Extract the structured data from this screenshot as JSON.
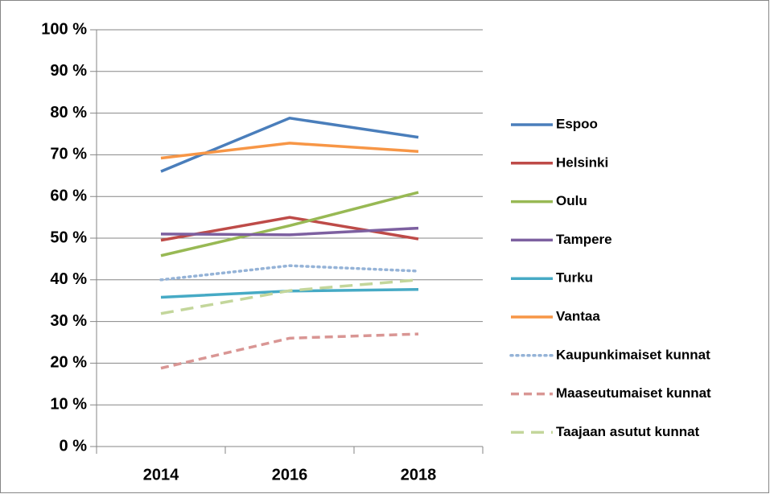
{
  "chart_data": {
    "type": "line",
    "categories": [
      "2014",
      "2016",
      "2018"
    ],
    "ylim": [
      0,
      100
    ],
    "yticks": [
      {
        "value": 0,
        "label": "0 %"
      },
      {
        "value": 10,
        "label": "10 %"
      },
      {
        "value": 20,
        "label": "20 %"
      },
      {
        "value": 30,
        "label": "30 %"
      },
      {
        "value": 40,
        "label": "40 %"
      },
      {
        "value": 50,
        "label": "50 %"
      },
      {
        "value": 60,
        "label": "60 %"
      },
      {
        "value": 70,
        "label": "70 %"
      },
      {
        "value": 80,
        "label": "80 %"
      },
      {
        "value": 90,
        "label": "90 %"
      },
      {
        "value": 100,
        "label": "100 %"
      }
    ],
    "grid": true,
    "legend": "right",
    "series": [
      {
        "name": "Espoo",
        "color": "#4a7ebb",
        "style": "solid",
        "values": [
          66,
          78.8,
          74.2
        ]
      },
      {
        "name": "Helsinki",
        "color": "#be4b48",
        "style": "solid",
        "values": [
          49.5,
          55,
          49.8
        ]
      },
      {
        "name": "Oulu",
        "color": "#98b954",
        "style": "solid",
        "values": [
          45.8,
          53,
          61
        ]
      },
      {
        "name": "Tampere",
        "color": "#7d60a0",
        "style": "solid",
        "values": [
          51,
          50.8,
          52.4
        ]
      },
      {
        "name": "Turku",
        "color": "#46aac5",
        "style": "solid",
        "values": [
          35.8,
          37.3,
          37.7
        ]
      },
      {
        "name": "Vantaa",
        "color": "#f79646",
        "style": "solid",
        "values": [
          69.2,
          72.8,
          70.8
        ]
      },
      {
        "name": "Kaupunkimaiset kunnat",
        "color": "#95b3d7",
        "style": "dotted",
        "values": [
          40,
          43.4,
          42.1
        ]
      },
      {
        "name": "Maaseutumaiset kunnat",
        "color": "#d99694",
        "style": "dashed",
        "values": [
          18.8,
          26,
          27
        ]
      },
      {
        "name": "Taajaan asutut kunnat",
        "color": "#c3d69b",
        "style": "longdash",
        "values": [
          31.9,
          37.4,
          40
        ]
      }
    ]
  }
}
